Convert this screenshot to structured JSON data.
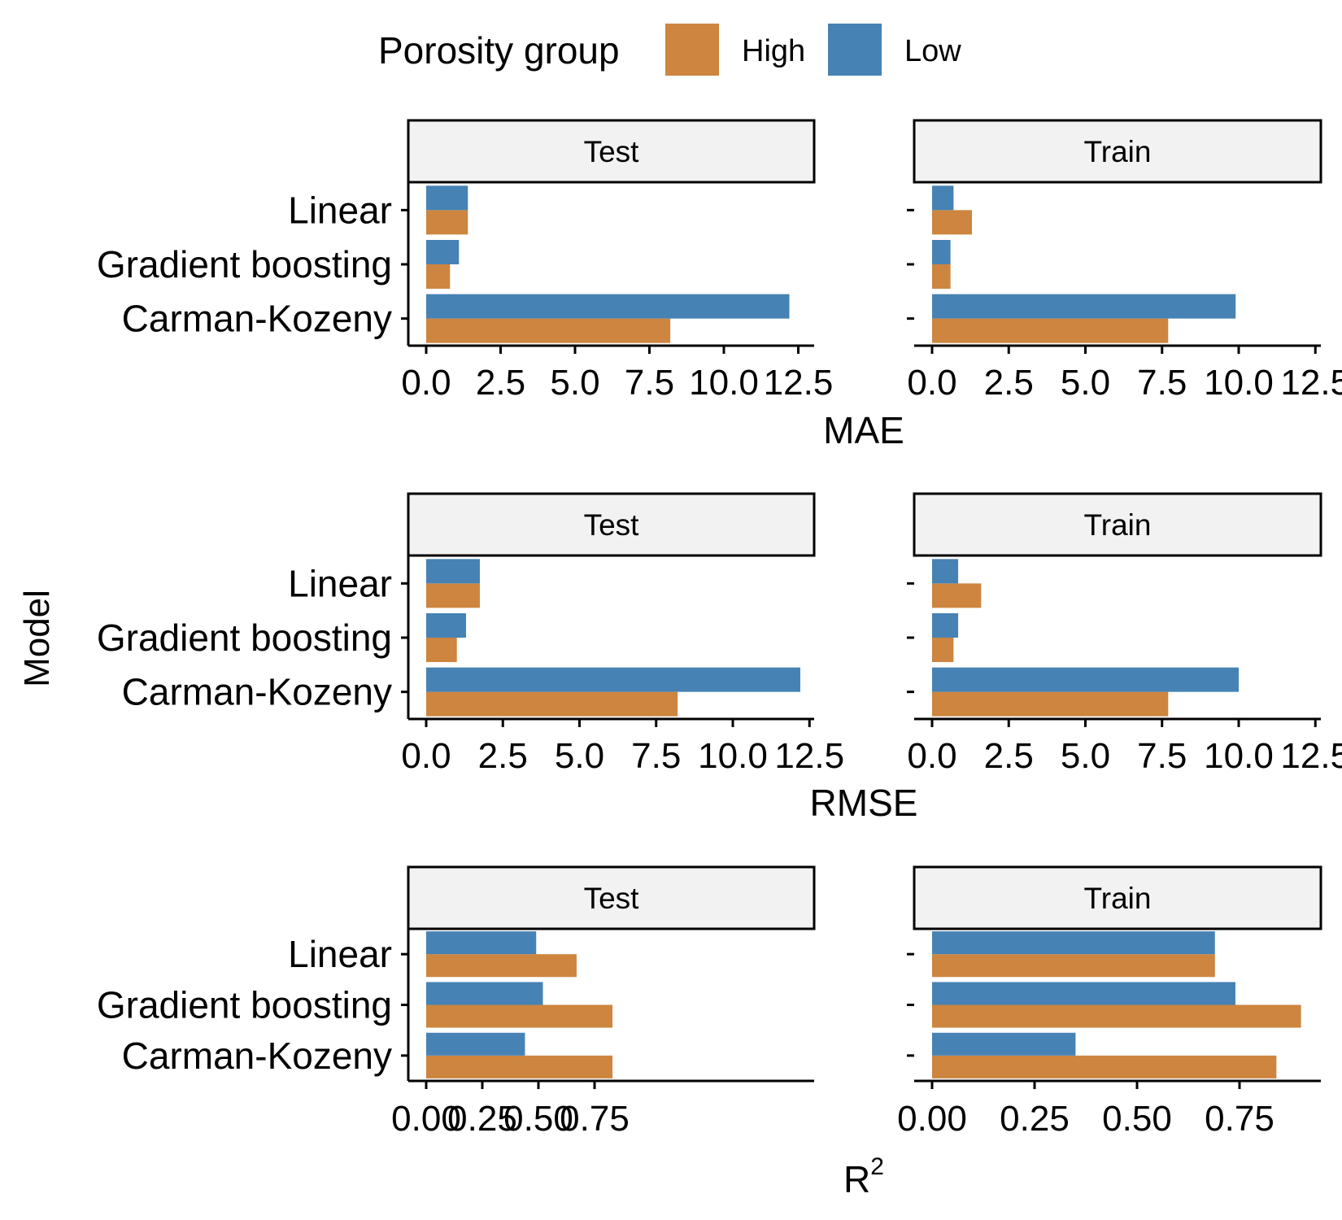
{
  "legend": {
    "title": "Porosity group",
    "items": [
      {
        "label": "High",
        "color": "#CD853F"
      },
      {
        "label": "Low",
        "color": "#4682B4"
      }
    ]
  },
  "y_axis_title": "Model",
  "chart_data": [
    {
      "type": "bar",
      "orientation": "horizontal",
      "metric": "MAE",
      "xlabel": "MAE",
      "xlim": [
        0,
        12.5
      ],
      "xticks": [
        "0.0",
        "2.5",
        "5.0",
        "7.5",
        "10.0",
        "12.5"
      ],
      "categories": [
        "Linear",
        "Gradient boosting",
        "Carman-Kozeny"
      ],
      "panels": [
        {
          "label": "Test",
          "series": [
            {
              "name": "High",
              "values": [
                1.4,
                0.8,
                8.2
              ]
            },
            {
              "name": "Low",
              "values": [
                1.4,
                1.1,
                12.2
              ]
            }
          ]
        },
        {
          "label": "Train",
          "series": [
            {
              "name": "High",
              "values": [
                1.3,
                0.6,
                7.7
              ]
            },
            {
              "name": "Low",
              "values": [
                0.7,
                0.6,
                9.9
              ]
            }
          ]
        }
      ]
    },
    {
      "type": "bar",
      "orientation": "horizontal",
      "metric": "RMSE",
      "xlabel": "RMSE",
      "xlim": [
        0,
        12.5
      ],
      "xticks": [
        "0.0",
        "2.5",
        "5.0",
        "7.5",
        "10.0",
        "12.5"
      ],
      "categories": [
        "Linear",
        "Gradient boosting",
        "Carman-Kozeny"
      ],
      "panels": [
        {
          "label": "Test",
          "series": [
            {
              "name": "High",
              "values": [
                1.75,
                1.0,
                8.2
              ]
            },
            {
              "name": "Low",
              "values": [
                1.75,
                1.3,
                12.2
              ]
            }
          ]
        },
        {
          "label": "Train",
          "series": [
            {
              "name": "High",
              "values": [
                1.6,
                0.7,
                7.7
              ]
            },
            {
              "name": "Low",
              "values": [
                0.85,
                0.85,
                10.0
              ]
            }
          ]
        }
      ]
    },
    {
      "type": "bar",
      "orientation": "horizontal",
      "metric": "R2",
      "xlabel": "R",
      "xlabel_sup": "2",
      "xlim": [
        0,
        0.9
      ],
      "xticks": [
        "0.00",
        "0.25",
        "0.50",
        "0.75"
      ],
      "categories": [
        "Linear",
        "Gradient boosting",
        "Carman-Kozeny"
      ],
      "panels": [
        {
          "label": "Test",
          "series": [
            {
              "name": "High",
              "values": [
                0.67,
                0.83,
                0.83
              ]
            },
            {
              "name": "Low",
              "values": [
                0.49,
                0.52,
                0.44
              ]
            }
          ]
        },
        {
          "label": "Train",
          "series": [
            {
              "name": "High",
              "values": [
                0.69,
                0.9,
                0.84
              ]
            },
            {
              "name": "Low",
              "values": [
                0.69,
                0.74,
                0.35
              ]
            }
          ]
        }
      ]
    }
  ]
}
